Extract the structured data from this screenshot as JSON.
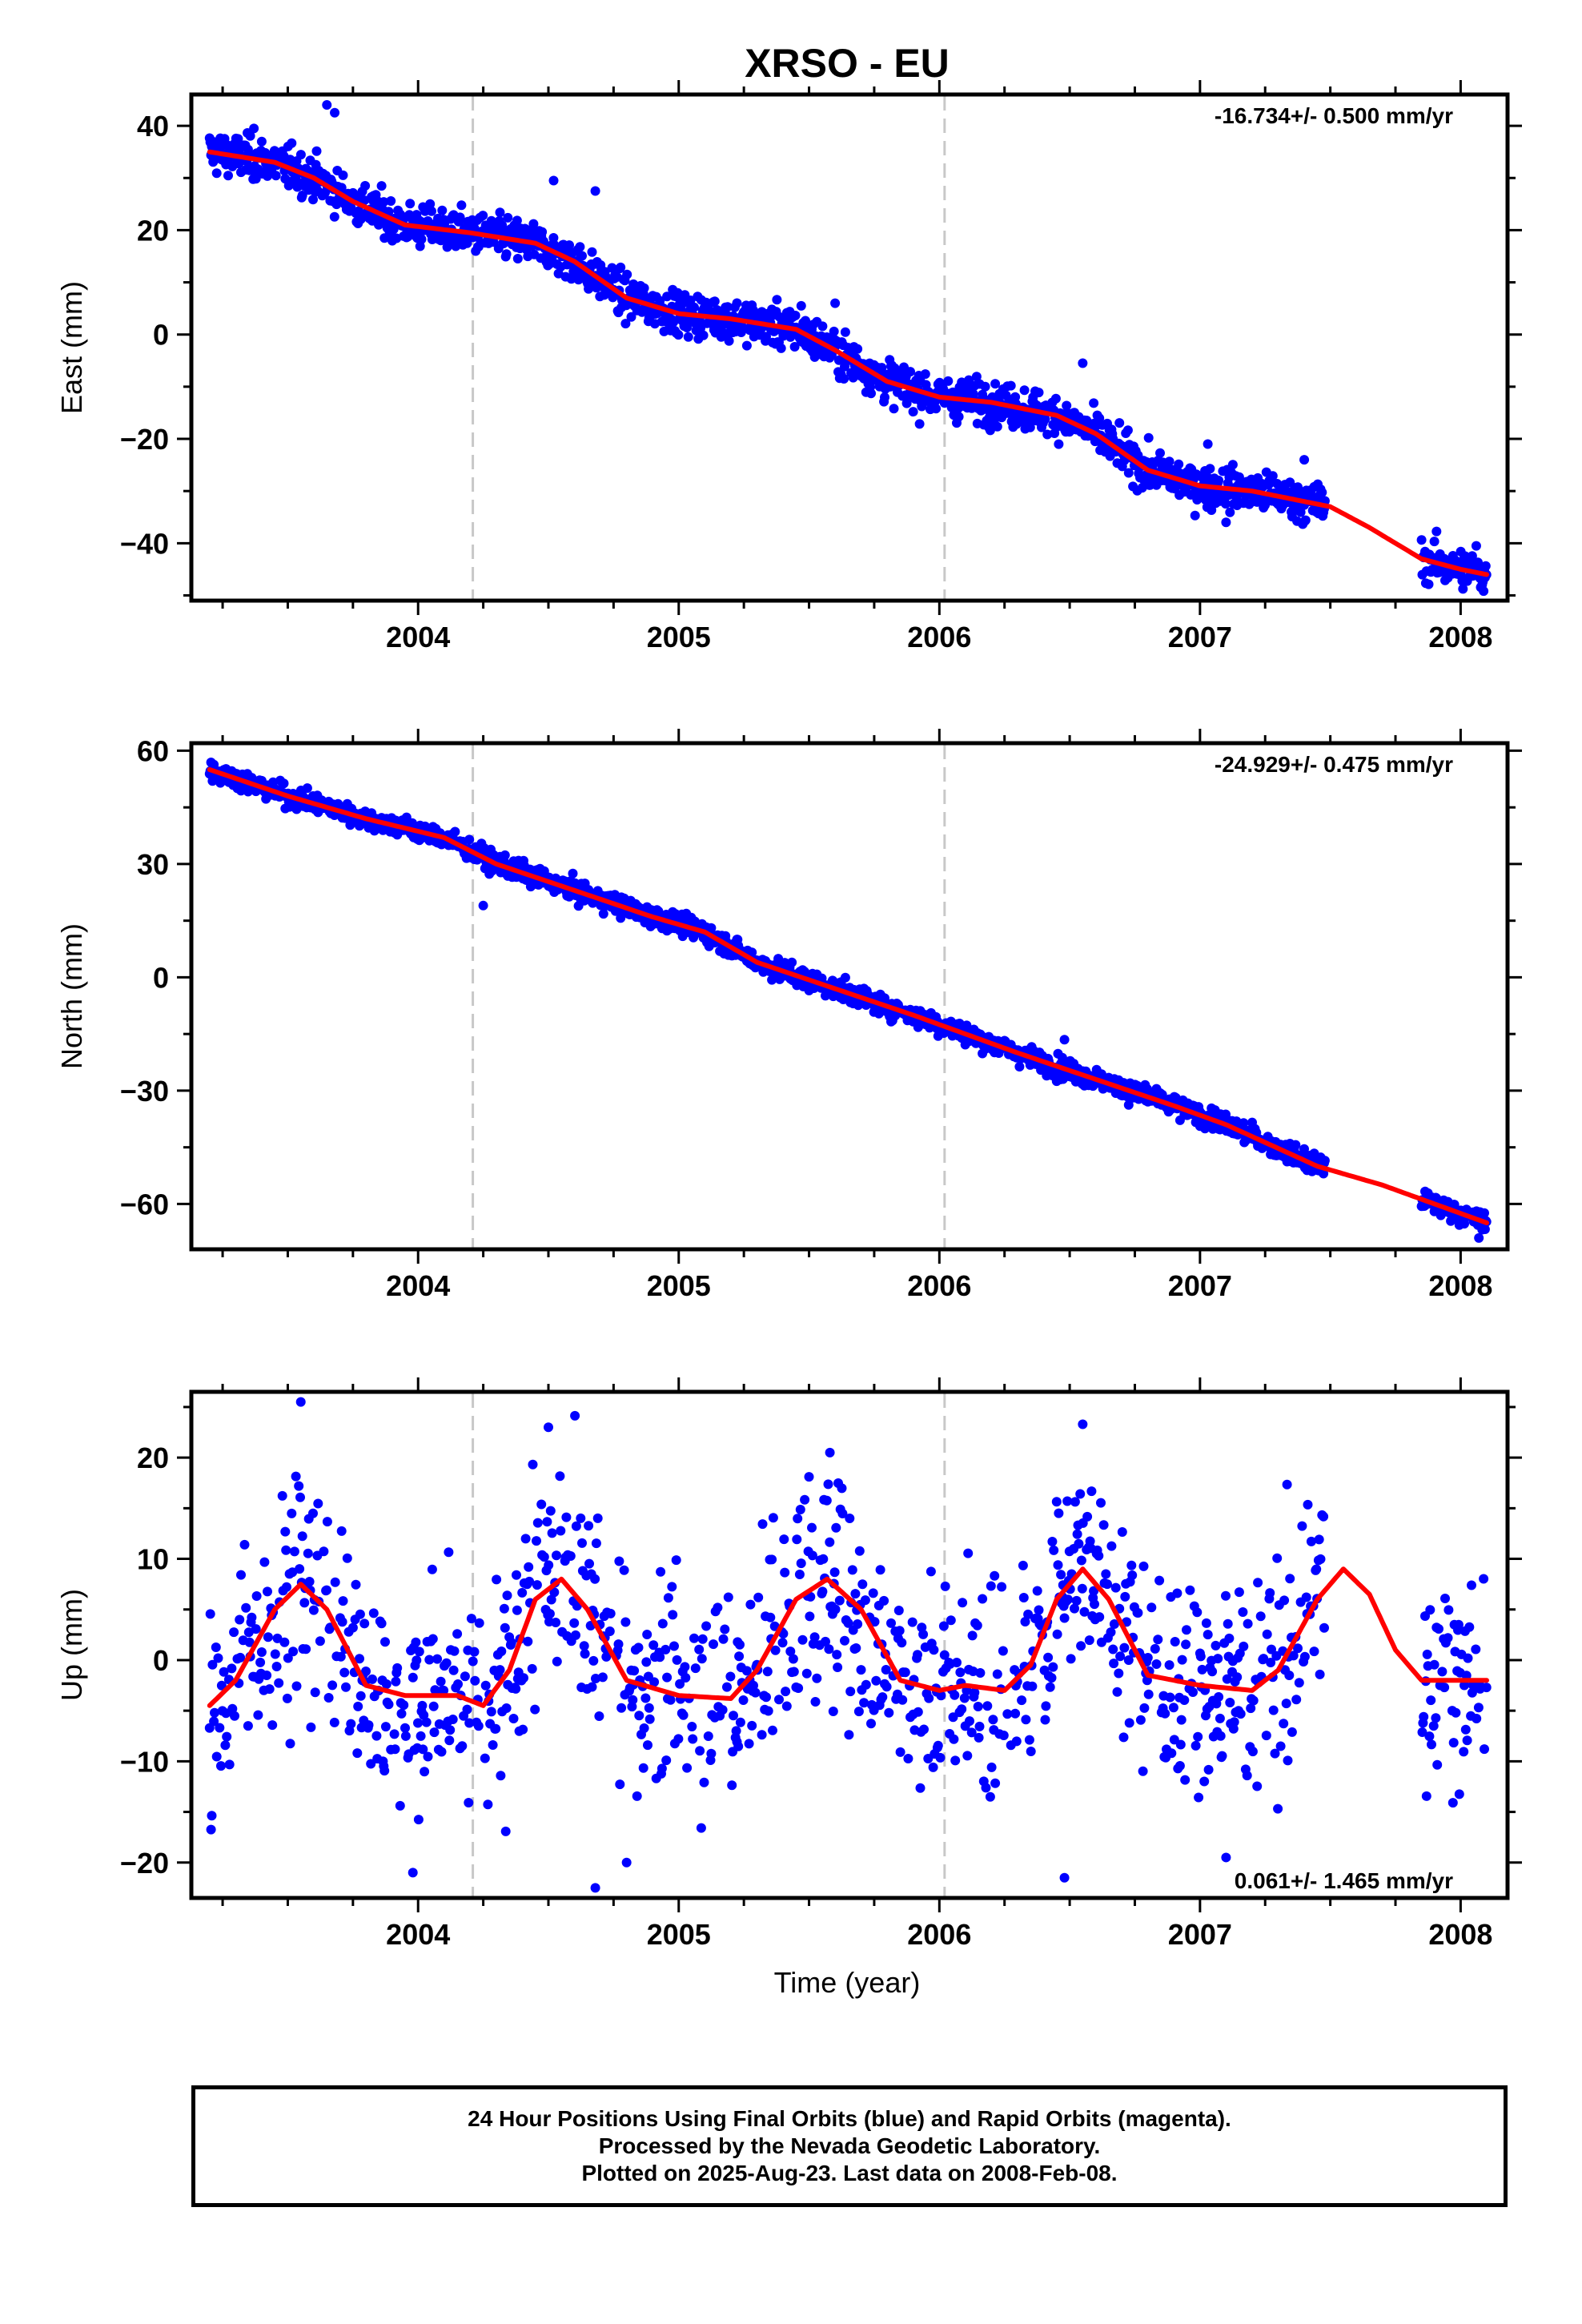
{
  "title": "XRSO - EU",
  "colors": {
    "points": "#0000ff",
    "fit": "#ff0000",
    "marker_lines": "#c8c8c8",
    "frame": "#000000"
  },
  "xlabel": "Time (year)",
  "chart_data": [
    {
      "type": "scatter",
      "ylabel": "East (mm)",
      "rate_text": "-16.734+/- 0.500 mm/yr",
      "xlim": [
        2003.13,
        2008.18
      ],
      "ylim": [
        -51,
        46
      ],
      "x_ticks": [
        2004,
        2005,
        2006,
        2007,
        2008
      ],
      "y_ticks": [
        40,
        20,
        0,
        -20,
        -40
      ],
      "y_tick_labels": [
        "40",
        "20",
        "0",
        "−20",
        "−40"
      ],
      "vertical_markers": [
        2004.21,
        2006.02
      ],
      "fit_line": {
        "x": [
          2003.2,
          2003.45,
          2003.6,
          2003.75,
          2003.95,
          2004.2,
          2004.45,
          2004.6,
          2004.8,
          2005.0,
          2005.2,
          2005.45,
          2005.6,
          2005.8,
          2006.0,
          2006.2,
          2006.45,
          2006.6,
          2006.8,
          2007.0,
          2007.2,
          2007.5,
          2007.65,
          2007.85,
          2008.0,
          2008.1
        ],
        "y": [
          35,
          33,
          30,
          25.5,
          21,
          19.5,
          17.5,
          14,
          7,
          4,
          3,
          1,
          -3,
          -9,
          -12,
          -13,
          -15.5,
          -19,
          -26,
          -29,
          -30,
          -33,
          -37,
          -43,
          -45,
          -46
        ]
      },
      "scatter_noise": 2.2,
      "outliers": [
        {
          "x": 2003.65,
          "y": 44
        },
        {
          "x": 2003.68,
          "y": 42.5
        },
        {
          "x": 2003.37,
          "y": 39.5
        },
        {
          "x": 2004.52,
          "y": 29.5
        },
        {
          "x": 2004.68,
          "y": 27.5
        },
        {
          "x": 2005.47,
          "y": 5.5
        },
        {
          "x": 2005.6,
          "y": 6
        },
        {
          "x": 2006.55,
          "y": -5.5
        },
        {
          "x": 2007.03,
          "y": -21
        },
        {
          "x": 2007.4,
          "y": -24
        },
        {
          "x": 2007.1,
          "y": -36
        },
        {
          "x": 2008.06,
          "y": -40.5
        }
      ],
      "segments": [
        {
          "start": 2003.2,
          "end": 2007.48
        },
        {
          "start": 2007.85,
          "end": 2008.1
        }
      ]
    },
    {
      "type": "scatter",
      "ylabel": "North (mm)",
      "rate_text": "-24.929+/- 0.475 mm/yr",
      "xlim": [
        2003.13,
        2008.18
      ],
      "ylim": [
        -72,
        62
      ],
      "x_ticks": [
        2004,
        2005,
        2006,
        2007,
        2008
      ],
      "y_ticks": [
        60,
        30,
        0,
        -30,
        -60
      ],
      "y_tick_labels": [
        "60",
        "30",
        "0",
        "−30",
        "−60"
      ],
      "vertical_markers": [
        2004.21,
        2006.02
      ],
      "fit_line": {
        "x": [
          2003.2,
          2003.5,
          2003.8,
          2004.1,
          2004.3,
          2004.6,
          2004.9,
          2005.1,
          2005.3,
          2005.6,
          2005.9,
          2006.1,
          2006.3,
          2006.6,
          2006.9,
          2007.1,
          2007.45,
          2007.7,
          2007.9,
          2008.1
        ],
        "y": [
          55,
          48,
          42,
          37,
          30,
          23,
          16,
          12,
          4,
          -3,
          -10,
          -15,
          -20,
          -27,
          -34,
          -39,
          -50,
          -55,
          -60,
          -65
        ]
      },
      "scatter_noise": 1.5,
      "outliers": [
        {
          "x": 2004.25,
          "y": 19
        },
        {
          "x": 2006.48,
          "y": -16.5
        },
        {
          "x": 2006.45,
          "y": -27.5
        },
        {
          "x": 2005.5,
          "y": -3.5
        },
        {
          "x": 2008.07,
          "y": -69
        }
      ],
      "segments": [
        {
          "start": 2003.2,
          "end": 2007.48
        },
        {
          "start": 2007.85,
          "end": 2008.1
        }
      ]
    },
    {
      "type": "scatter",
      "ylabel": "Up (mm)",
      "rate_text": "0.061+/- 1.465 mm/yr",
      "xlim": [
        2003.13,
        2008.18
      ],
      "ylim": [
        -23.5,
        26.5
      ],
      "x_ticks": [
        2004,
        2005,
        2006,
        2007,
        2008
      ],
      "y_ticks": [
        20,
        10,
        0,
        -10,
        -20
      ],
      "y_tick_labels": [
        "20",
        "10",
        "0",
        "−10",
        "−20"
      ],
      "vertical_markers": [
        2004.21,
        2006.02
      ],
      "fit_line": {
        "x": [
          2003.2,
          2003.3,
          2003.45,
          2003.55,
          2003.65,
          2003.8,
          2003.95,
          2004.15,
          2004.25,
          2004.35,
          2004.45,
          2004.55,
          2004.65,
          2004.8,
          2005.0,
          2005.2,
          2005.3,
          2005.45,
          2005.57,
          2005.7,
          2005.85,
          2006.0,
          2006.1,
          2006.25,
          2006.35,
          2006.45,
          2006.55,
          2006.65,
          2006.8,
          2007.0,
          2007.2,
          2007.3,
          2007.45,
          2007.55,
          2007.65,
          2007.75,
          2007.85,
          2008.1
        ],
        "y": [
          -4.5,
          -2,
          5,
          7.5,
          5,
          -2.5,
          -3.5,
          -3.5,
          -4.5,
          -1,
          6,
          8,
          5,
          -2,
          -3.5,
          -3.8,
          -1,
          6,
          8,
          5,
          -2,
          -3,
          -2.5,
          -3,
          -0.5,
          6,
          9,
          6,
          -1.5,
          -2.5,
          -3,
          -1,
          6,
          9,
          6.5,
          1,
          -2,
          -2
        ]
      },
      "scatter_noise": 5.5,
      "outliers": [
        {
          "x": 2003.55,
          "y": 25.5
        },
        {
          "x": 2004.5,
          "y": 23
        },
        {
          "x": 2005.58,
          "y": 20.5
        },
        {
          "x": 2006.55,
          "y": 23.3
        },
        {
          "x": 2004.68,
          "y": -22.5
        },
        {
          "x": 2006.48,
          "y": -21.5
        },
        {
          "x": 2007.1,
          "y": -19.5
        },
        {
          "x": 2003.98,
          "y": -21
        },
        {
          "x": 2004.8,
          "y": -20
        }
      ],
      "segments": [
        {
          "start": 2003.2,
          "end": 2007.48
        },
        {
          "start": 2007.85,
          "end": 2008.1
        }
      ]
    }
  ],
  "footer": {
    "line1": "24 Hour Positions Using Final Orbits (blue) and Rapid Orbits (magenta).",
    "line2": "Processed by the Nevada Geodetic Laboratory.",
    "line3": "Plotted on 2025-Aug-23. Last data on 2008-Feb-08."
  }
}
